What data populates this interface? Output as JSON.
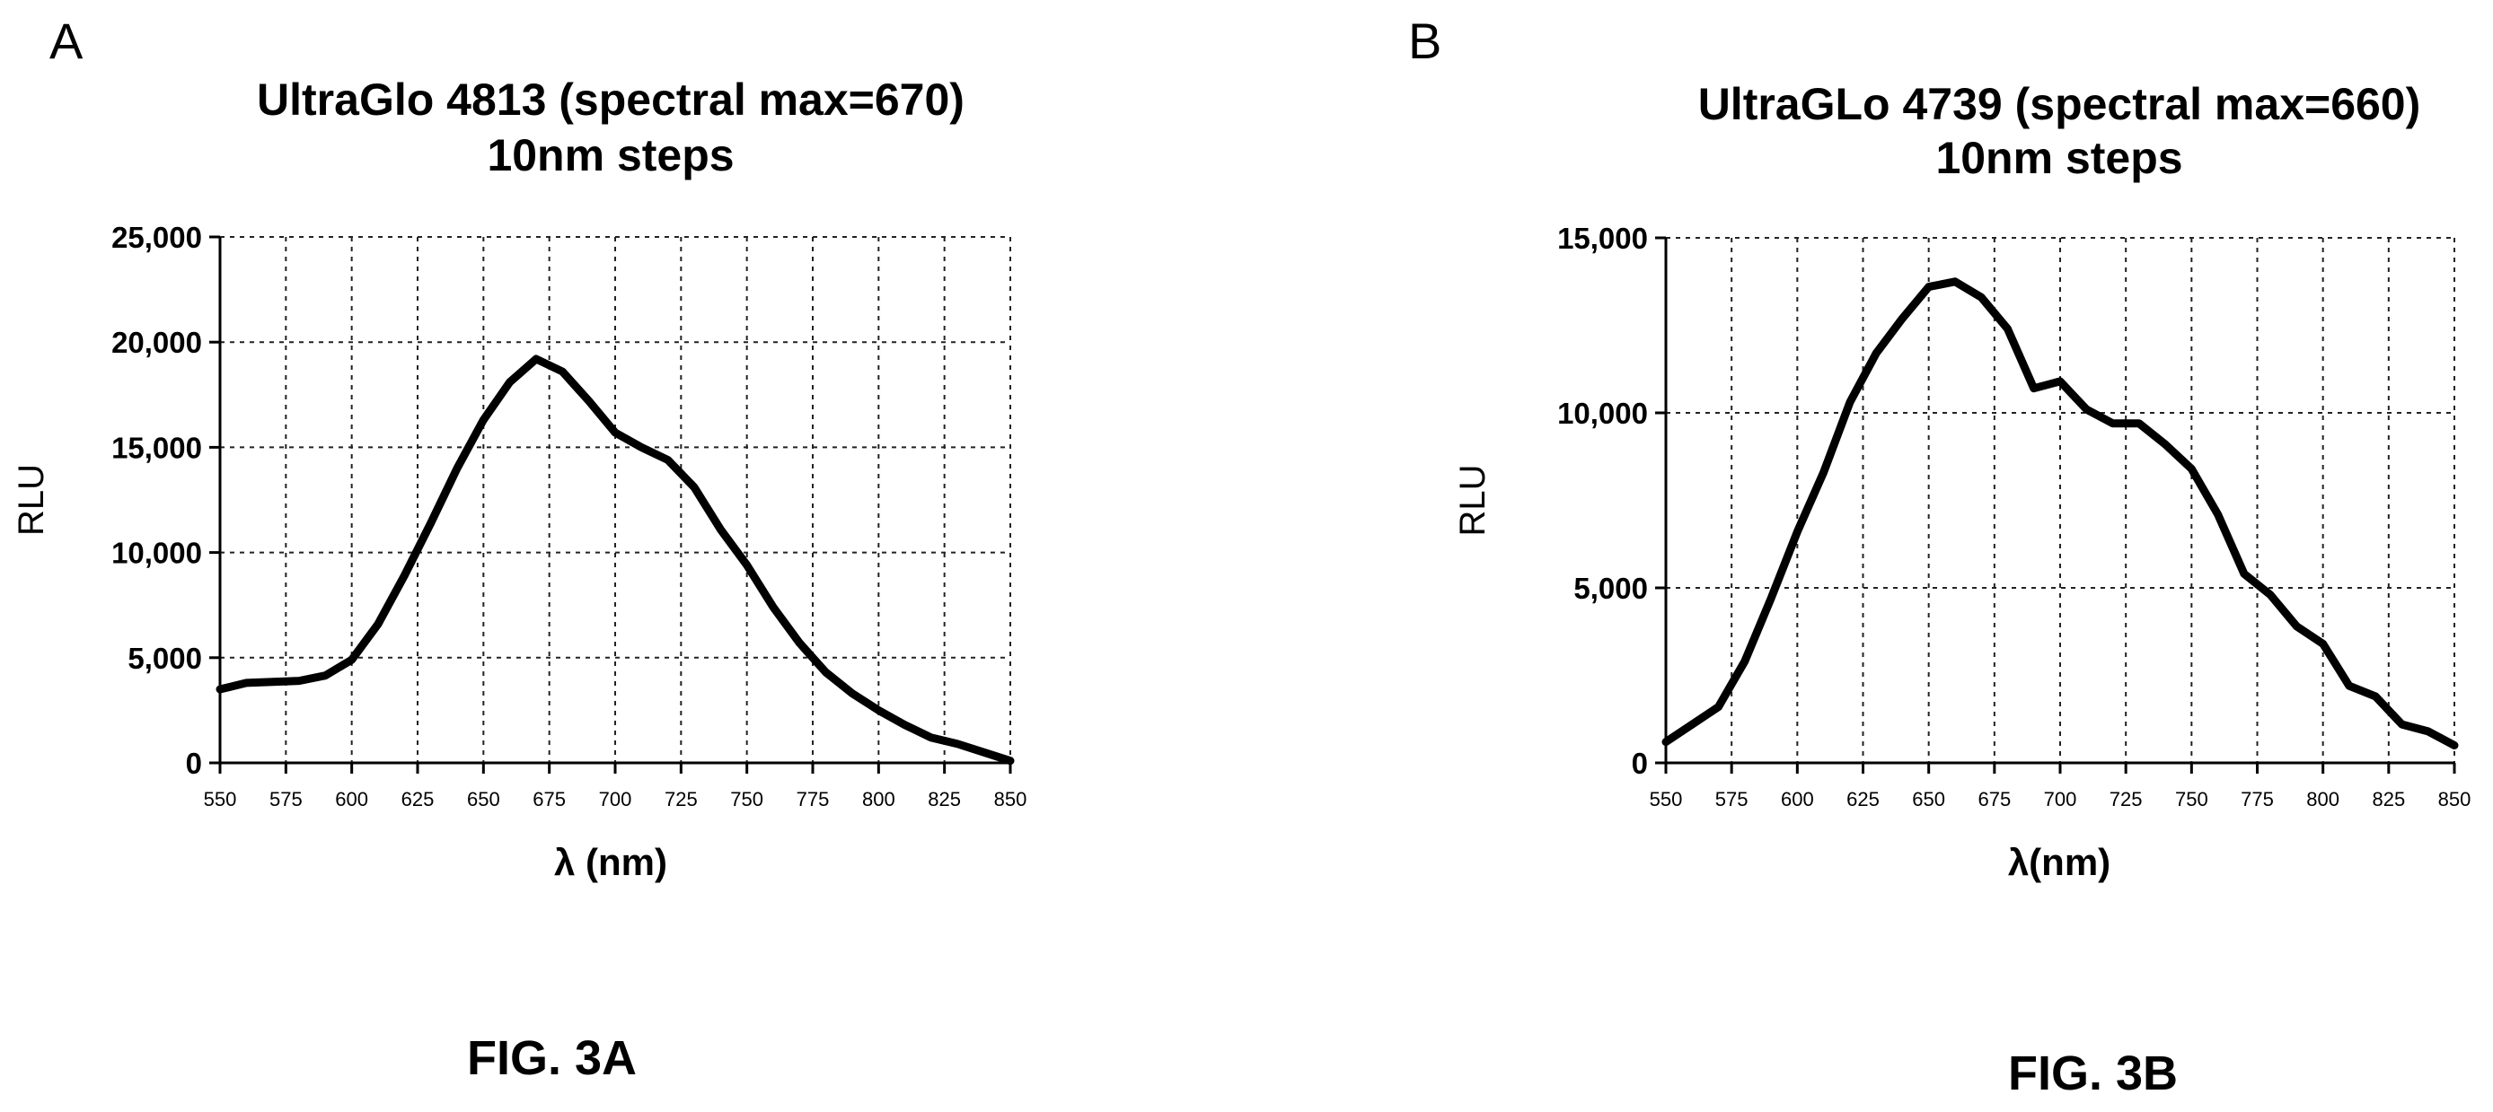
{
  "chart_data": [
    {
      "type": "line",
      "panel_letter": "A",
      "title": "UltraGlo 4813 (spectral max=670)",
      "subtitle": "10nm steps",
      "xlabel": "λ (nm)",
      "ylabel": "RLU",
      "xlim": [
        550,
        850
      ],
      "ylim": [
        0,
        25000
      ],
      "xticks": [
        550,
        575,
        600,
        625,
        650,
        675,
        700,
        725,
        750,
        775,
        800,
        825,
        850
      ],
      "xtick_labels": [
        "550",
        "575",
        "600",
        "625",
        "650",
        "675",
        "700",
        "725",
        "750",
        "775",
        "800",
        "825",
        "850"
      ],
      "yticks": [
        0,
        5000,
        10000,
        15000,
        20000,
        25000
      ],
      "ytick_labels": [
        "0",
        "5,000",
        "10,000",
        "15,000",
        "20,000",
        "25,000"
      ],
      "grid": true,
      "x": [
        550,
        560,
        570,
        580,
        590,
        600,
        610,
        620,
        630,
        640,
        650,
        660,
        670,
        680,
        690,
        700,
        710,
        720,
        730,
        740,
        750,
        760,
        770,
        780,
        790,
        800,
        810,
        820,
        830,
        840,
        850
      ],
      "y": [
        3500,
        3800,
        3850,
        3900,
        4150,
        4900,
        6600,
        8900,
        11400,
        14000,
        16300,
        18100,
        19200,
        18600,
        17200,
        15700,
        15000,
        14400,
        13100,
        11100,
        9400,
        7400,
        5700,
        4300,
        3300,
        2500,
        1800,
        1200,
        900,
        500,
        100
      ]
    },
    {
      "type": "line",
      "panel_letter": "B",
      "title": "UltraGLo 4739 (spectral max=660)",
      "subtitle": "10nm steps",
      "xlabel": "λ(nm)",
      "ylabel": "RLU",
      "xlim": [
        550,
        850
      ],
      "ylim": [
        0,
        15000
      ],
      "xticks": [
        550,
        575,
        600,
        625,
        650,
        675,
        700,
        725,
        750,
        775,
        800,
        825,
        850
      ],
      "xtick_labels": [
        "550",
        "575",
        "600",
        "625",
        "650",
        "675",
        "700",
        "725",
        "750",
        "775",
        "800",
        "825",
        "850"
      ],
      "yticks": [
        0,
        5000,
        10000,
        15000
      ],
      "ytick_labels": [
        "0",
        "5,000",
        "10,000",
        "15,000"
      ],
      "grid": true,
      "x": [
        550,
        560,
        570,
        580,
        590,
        600,
        610,
        620,
        630,
        640,
        650,
        660,
        670,
        680,
        690,
        700,
        710,
        720,
        730,
        740,
        750,
        760,
        770,
        780,
        790,
        800,
        810,
        820,
        830,
        840,
        850
      ],
      "y": [
        600,
        1100,
        1600,
        2900,
        4700,
        6600,
        8300,
        10300,
        11700,
        12700,
        13600,
        13750,
        13300,
        12400,
        10700,
        10900,
        10100,
        9700,
        9700,
        9100,
        8400,
        7100,
        5400,
        4800,
        3900,
        3400,
        2200,
        1900,
        1100,
        900,
        500
      ]
    }
  ],
  "figure_labels": [
    "FIG. 3A",
    "FIG. 3B"
  ]
}
